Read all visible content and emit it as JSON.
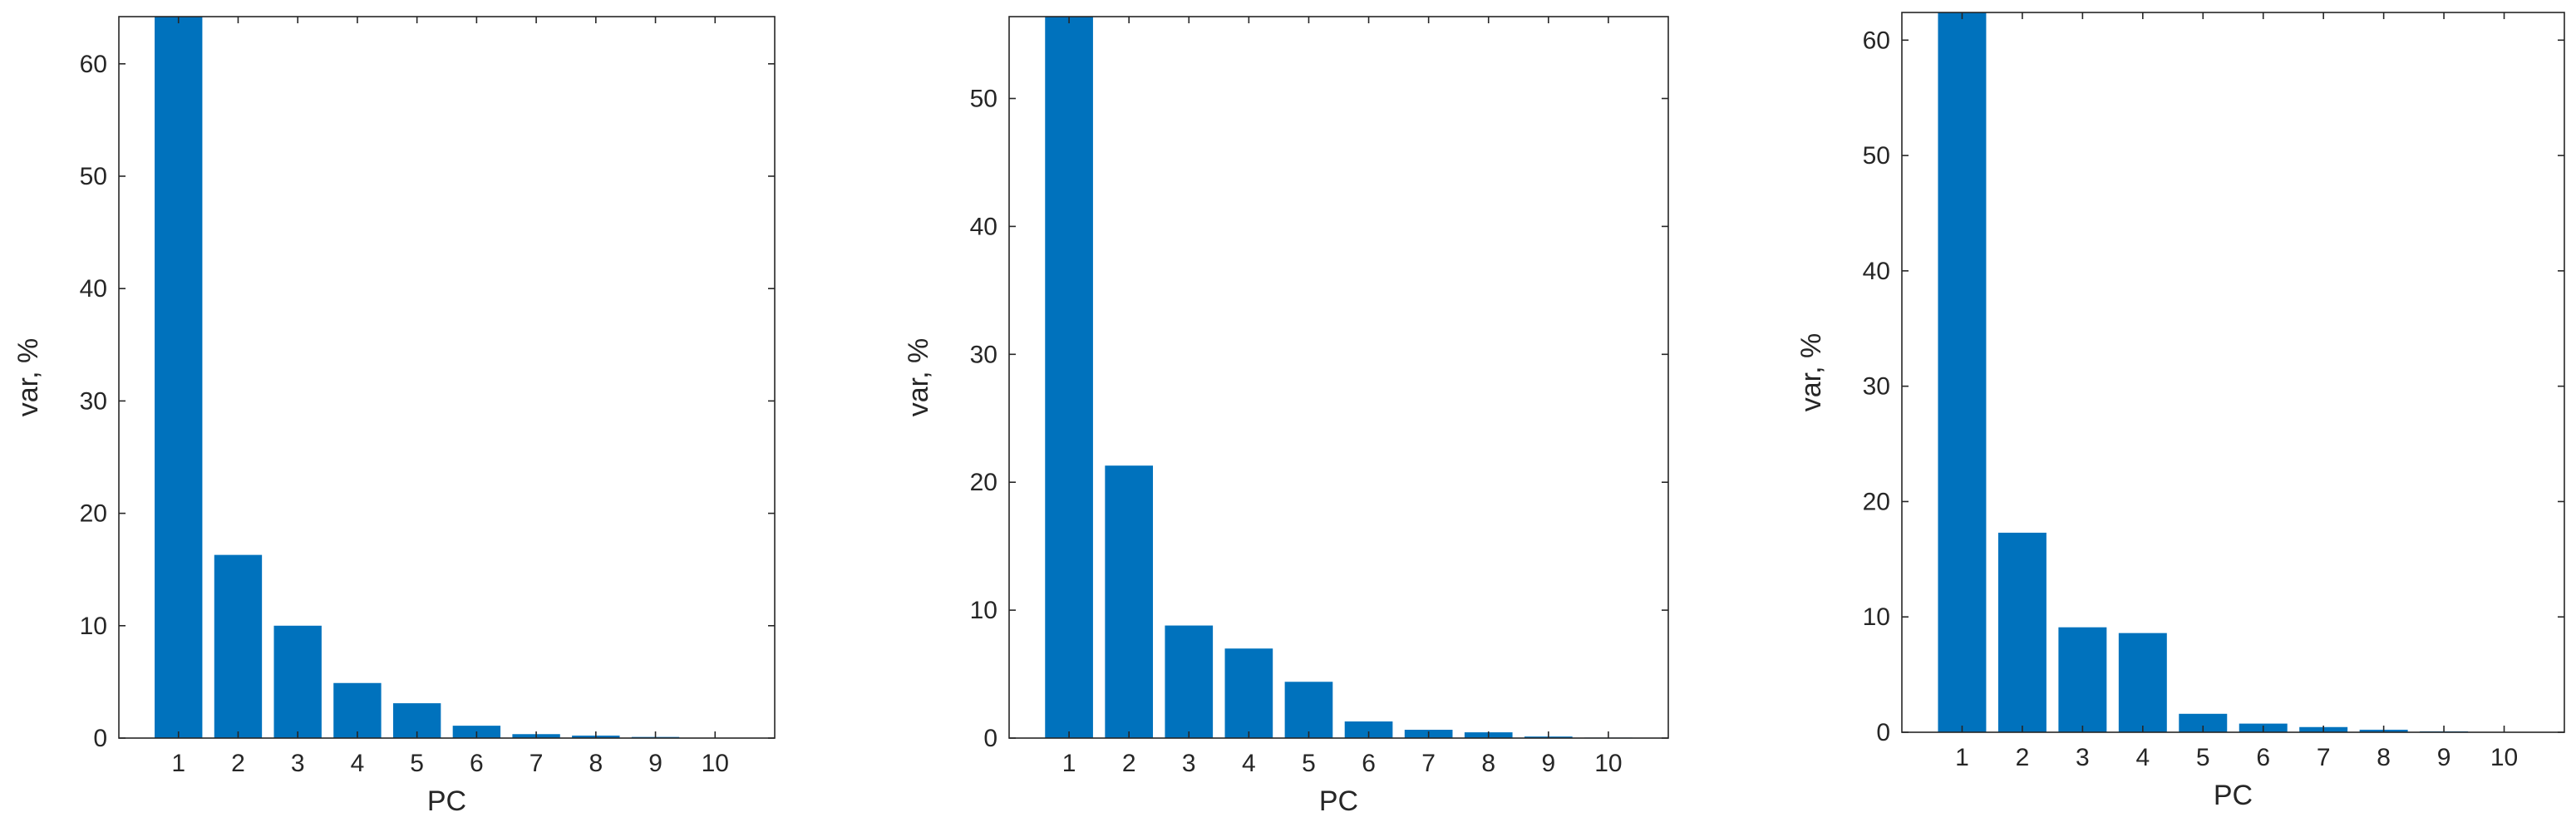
{
  "chart_data": [
    {
      "type": "bar",
      "categories": [
        "1",
        "2",
        "3",
        "4",
        "5",
        "6",
        "7",
        "8",
        "9",
        "10"
      ],
      "values": [
        64.2,
        16.3,
        10.0,
        4.9,
        3.1,
        1.1,
        0.35,
        0.22,
        0.1,
        0.03
      ],
      "xticks": [
        "1",
        "2",
        "3",
        "4",
        "5",
        "6",
        "7",
        "8",
        "9",
        "10"
      ],
      "yticks": [
        0,
        10,
        20,
        30,
        40,
        50,
        60
      ],
      "xlabel": "PC",
      "ylabel": "var, %",
      "xlim": [
        0,
        11
      ],
      "ylim": [
        0,
        64.2
      ],
      "bar_color": "#0072BD",
      "grid": false,
      "legend": "none"
    },
    {
      "type": "bar",
      "categories": [
        "1",
        "2",
        "3",
        "4",
        "5",
        "6",
        "7",
        "8",
        "9",
        "10"
      ],
      "values": [
        56.4,
        21.3,
        8.8,
        7.0,
        4.4,
        1.3,
        0.65,
        0.45,
        0.12,
        0.04
      ],
      "xticks": [
        "1",
        "2",
        "3",
        "4",
        "5",
        "6",
        "7",
        "8",
        "9",
        "10"
      ],
      "yticks": [
        0,
        10,
        20,
        30,
        40,
        50
      ],
      "xlabel": "PC",
      "ylabel": "var, %",
      "xlim": [
        0,
        11
      ],
      "ylim": [
        0,
        56.4
      ],
      "bar_color": "#0072BD",
      "grid": false,
      "legend": "none"
    },
    {
      "type": "bar",
      "categories": [
        "1",
        "2",
        "3",
        "4",
        "5",
        "6",
        "7",
        "8",
        "9",
        "10"
      ],
      "values": [
        62.4,
        17.3,
        9.1,
        8.6,
        1.6,
        0.75,
        0.45,
        0.22,
        0.08,
        0.02
      ],
      "xticks": [
        "1",
        "2",
        "3",
        "4",
        "5",
        "6",
        "7",
        "8",
        "9",
        "10"
      ],
      "yticks": [
        0,
        10,
        20,
        30,
        40,
        50,
        60
      ],
      "xlabel": "PC",
      "ylabel": "var, %",
      "xlim": [
        0,
        11
      ],
      "ylim": [
        0,
        62.4
      ],
      "bar_color": "#0072BD",
      "grid": false,
      "legend": "none"
    }
  ]
}
